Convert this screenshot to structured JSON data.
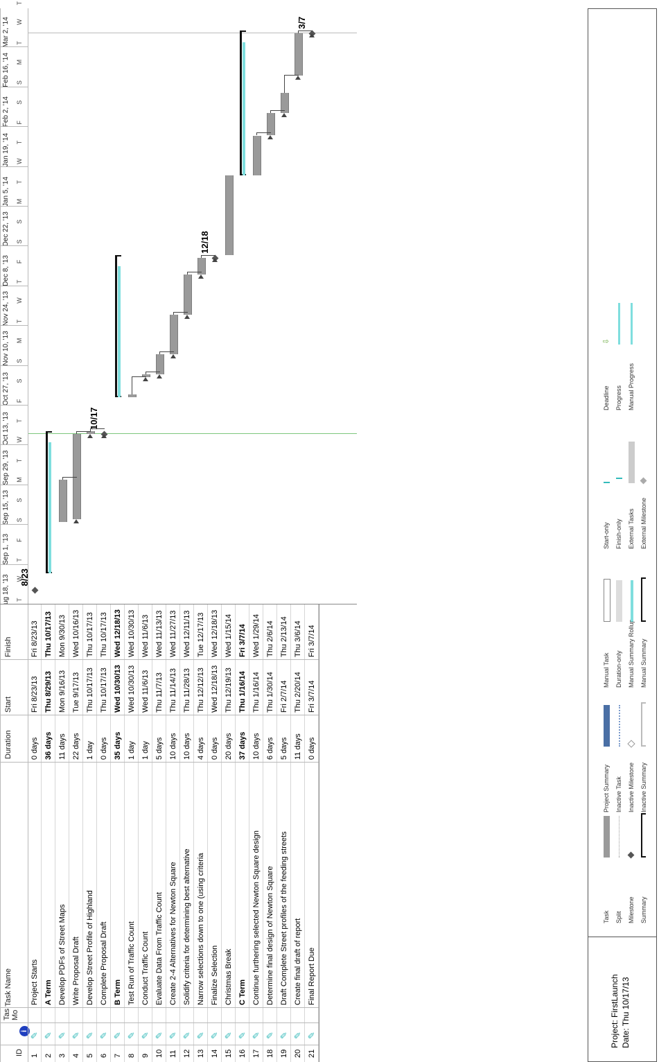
{
  "headers": {
    "id": "ID",
    "task_mode": "Task Mode",
    "task_mode_short": "Tas",
    "task_mode_sub": "Mo",
    "task_name": "Task Name",
    "duration": "Duration",
    "start": "Start",
    "finish": "Finish"
  },
  "timeline": {
    "weeks": [
      "ug 18, '13",
      "Sep 1, '13",
      "Sep 15, '13",
      "Sep 29, '13",
      "Oct 13, '13",
      "Oct 27, '13",
      "Nov 10, '13",
      "Nov 24, '13",
      "Dec 8, '13",
      "Dec 22, '13",
      "Jan 5, '14",
      "Jan 19, '14",
      "Feb 2, '14",
      "Feb 16, '14",
      "Mar 2, '14"
    ],
    "days": [
      "T",
      "W",
      "T",
      "F",
      "S",
      "S",
      "M",
      "T",
      "W",
      "T",
      "F",
      "S",
      "S",
      "M",
      "T",
      "W",
      "T",
      "F",
      "S",
      "S",
      "M",
      "T",
      "W",
      "T",
      "F",
      "S",
      "S",
      "M",
      "T",
      "W",
      "T",
      "F",
      "S"
    ]
  },
  "tasks": [
    {
      "id": "1",
      "name": "Project Starts",
      "duration": "0 days",
      "start": "Fri 8/23/13",
      "finish": "Fri 8/23/13",
      "bold": false
    },
    {
      "id": "2",
      "name": "A Term",
      "duration": "36 days",
      "start": "Thu 8/29/13",
      "finish": "Thu 10/17/13",
      "bold": true
    },
    {
      "id": "3",
      "name": "Develop PDFs of Street Maps",
      "duration": "11 days",
      "start": "Mon 9/16/13",
      "finish": "Mon 9/30/13",
      "bold": false
    },
    {
      "id": "4",
      "name": "Write Proposal Draft",
      "duration": "22 days",
      "start": "Tue 9/17/13",
      "finish": "Wed 10/16/13",
      "bold": false
    },
    {
      "id": "5",
      "name": "Develop Street Profile of Highland",
      "duration": "1 day",
      "start": "Thu 10/17/13",
      "finish": "Thu 10/17/13",
      "bold": false
    },
    {
      "id": "6",
      "name": "Complete Proposal Draft",
      "duration": "0 days",
      "start": "Thu 10/17/13",
      "finish": "Thu 10/17/13",
      "bold": false
    },
    {
      "id": "7",
      "name": "B Term",
      "duration": "35 days",
      "start": "Wed 10/30/13",
      "finish": "Wed 12/18/13",
      "bold": true
    },
    {
      "id": "8",
      "name": "Test Run of Traffic Count",
      "duration": "1 day",
      "start": "Wed 10/30/13",
      "finish": "Wed 10/30/13",
      "bold": false
    },
    {
      "id": "9",
      "name": "Conduct Traffic Count",
      "duration": "1 day",
      "start": "Wed 11/6/13",
      "finish": "Wed 11/6/13",
      "bold": false
    },
    {
      "id": "10",
      "name": "Evaluate Data From Traffic Count",
      "duration": "5 days",
      "start": "Thu 11/7/13",
      "finish": "Wed 11/13/13",
      "bold": false
    },
    {
      "id": "11",
      "name": "Create 2-4 Alternatives for Newton Square",
      "duration": "10 days",
      "start": "Thu 11/14/13",
      "finish": "Wed 11/27/13",
      "bold": false
    },
    {
      "id": "12",
      "name": "Solidify criteria for determining best alternative",
      "duration": "10 days",
      "start": "Thu 11/28/13",
      "finish": "Wed 12/11/13",
      "bold": false
    },
    {
      "id": "13",
      "name": "Narrow selections down to one (using criteria",
      "duration": "4 days",
      "start": "Thu 12/12/13",
      "finish": "Tue 12/17/13",
      "bold": false
    },
    {
      "id": "14",
      "name": "Finalize Selection",
      "duration": "0 days",
      "start": "Wed 12/18/13",
      "finish": "Wed 12/18/13",
      "bold": false
    },
    {
      "id": "15",
      "name": "Christmas Break",
      "duration": "20 days",
      "start": "Thu 12/19/13",
      "finish": "Wed 1/15/14",
      "bold": false
    },
    {
      "id": "16",
      "name": "C Term",
      "duration": "37 days",
      "start": "Thu 1/16/14",
      "finish": "Fri 3/7/14",
      "bold": true
    },
    {
      "id": "17",
      "name": "Continue furthering selected Newton Square design",
      "duration": "10 days",
      "start": "Thu 1/16/14",
      "finish": "Wed 1/29/14",
      "bold": false
    },
    {
      "id": "18",
      "name": "Determine final design of Newton Square",
      "duration": "6 days",
      "start": "Thu 1/30/14",
      "finish": "Thu 2/6/14",
      "bold": false
    },
    {
      "id": "19",
      "name": "Draft Complete Street profiles of the feeding streets",
      "duration": "5 days",
      "start": "Fri 2/7/14",
      "finish": "Thu 2/13/14",
      "bold": false
    },
    {
      "id": "20",
      "name": "Create final draft of report",
      "duration": "11 days",
      "start": "Thu 2/20/14",
      "finish": "Thu 3/6/14",
      "bold": false
    },
    {
      "id": "21",
      "name": "Final Report Due",
      "duration": "0 days",
      "start": "Fri 3/7/14",
      "finish": "Fri 3/7/14",
      "bold": false
    }
  ],
  "milestone_labels": {
    "m1": "8/23",
    "m6": "10/17",
    "m14": "12/18",
    "m21": "3/7"
  },
  "footer": {
    "project": "Project: FirstLaunch",
    "date": "Date: Thu 10/17/13"
  },
  "legend": {
    "col1": [
      "Task",
      "Split",
      "Milestone",
      "Summary"
    ],
    "col2": [
      "Project Summary",
      "Inactive Task",
      "Inactive Milestone",
      "Inactive Summary"
    ],
    "col3": [
      "Manual Task",
      "Duration-only",
      "Manual Summary Rollup",
      "Manual Summary"
    ],
    "col4": [
      "Start-only",
      "Finish-only",
      "External Tasks",
      "External Milestone"
    ],
    "col5": [
      "Deadline",
      "Progress",
      "Manual Progress"
    ]
  },
  "colors": {
    "task_bar": "#9a9a9a",
    "progress": "#7fdede",
    "summary": "#111111",
    "status_line": "#7dc67d",
    "project_summary": "#4a6fa5",
    "deadline": "#70ad47",
    "mode_icon": "#3cbcbc"
  },
  "icons": {
    "mode": "manually-scheduled-pin-icon",
    "info": "info-icon"
  }
}
